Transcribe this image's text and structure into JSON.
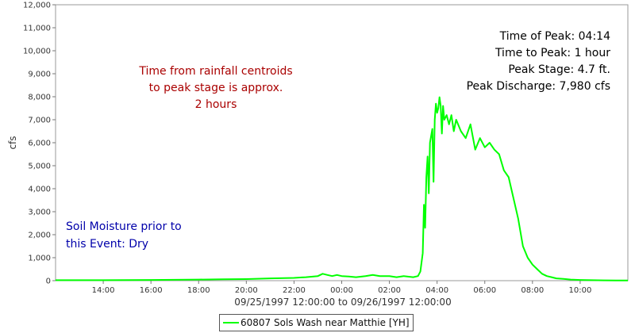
{
  "chart_data": {
    "type": "line",
    "xlabel": "09/25/1997 12:00:00 to 09/26/1997 12:00:00",
    "ylabel": "cfs",
    "ylim": [
      0,
      12000
    ],
    "y_ticks": [
      "0",
      "1,000",
      "2,000",
      "3,000",
      "4,000",
      "5,000",
      "6,000",
      "7,000",
      "8,000",
      "9,000",
      "10,000",
      "11,000",
      "12,000"
    ],
    "x_ticks": [
      "14:00",
      "16:00",
      "18:00",
      "20:00",
      "22:00",
      "00:00",
      "02:00",
      "04:00",
      "06:00",
      "08:00",
      "10:00"
    ],
    "x_tick_hours": [
      14,
      16,
      18,
      20,
      22,
      24,
      26,
      28,
      30,
      32,
      34
    ],
    "xlim_hours": [
      12,
      36
    ],
    "grid": false,
    "legend_position": "bottom",
    "series": [
      {
        "name": "60807 Sols Wash near Matthie [YH]",
        "color": "#00ff00",
        "x_hours": [
          12.0,
          14.0,
          16.0,
          17.5,
          18.0,
          19.0,
          20.0,
          21.0,
          22.0,
          22.5,
          23.0,
          23.2,
          23.4,
          23.6,
          23.8,
          24.0,
          24.3,
          24.6,
          25.0,
          25.3,
          25.6,
          26.0,
          26.3,
          26.6,
          27.0,
          27.2,
          27.3,
          27.4,
          27.45,
          27.5,
          27.55,
          27.6,
          27.65,
          27.7,
          27.8,
          27.85,
          27.9,
          27.95,
          28.0,
          28.05,
          28.1,
          28.15,
          28.2,
          28.25,
          28.3,
          28.4,
          28.5,
          28.6,
          28.7,
          28.8,
          29.0,
          29.2,
          29.4,
          29.6,
          29.8,
          30.0,
          30.2,
          30.4,
          30.6,
          30.8,
          31.0,
          31.2,
          31.4,
          31.6,
          31.8,
          32.0,
          32.2,
          32.4,
          32.6,
          32.8,
          33.0,
          33.3,
          33.6,
          34.0,
          34.5,
          35.0,
          35.5,
          36.0
        ],
        "values": [
          20,
          20,
          30,
          40,
          50,
          60,
          70,
          100,
          120,
          150,
          200,
          300,
          250,
          200,
          250,
          200,
          180,
          150,
          200,
          250,
          200,
          200,
          150,
          200,
          150,
          200,
          400,
          1200,
          3300,
          2300,
          4500,
          5400,
          3800,
          6000,
          6600,
          4300,
          7000,
          7700,
          7300,
          7500,
          7980,
          7600,
          6400,
          7600,
          7000,
          7200,
          6800,
          7200,
          6500,
          7000,
          6500,
          6200,
          6800,
          5700,
          6200,
          5800,
          6000,
          5700,
          5500,
          4800,
          4500,
          3600,
          2700,
          1500,
          1000,
          700,
          500,
          300,
          200,
          150,
          100,
          80,
          50,
          30,
          20,
          15,
          10,
          10
        ]
      }
    ],
    "annotations": {
      "peak_info": [
        "Time of Peak: 04:14",
        "Time to Peak: 1 hour",
        "Peak Stage: 4.7 ft.",
        "Peak Discharge: 7,980 cfs"
      ],
      "centroid_note": [
        "Time from rainfall centroids",
        "to peak stage is approx.",
        "2 hours"
      ],
      "soil_note": [
        "Soil Moisture prior to",
        "this Event: Dry"
      ]
    },
    "colors": {
      "series": "#00ff00",
      "centroid_note": "#aa0000",
      "soil_note": "#0000aa",
      "peak_info": "#000000"
    }
  }
}
